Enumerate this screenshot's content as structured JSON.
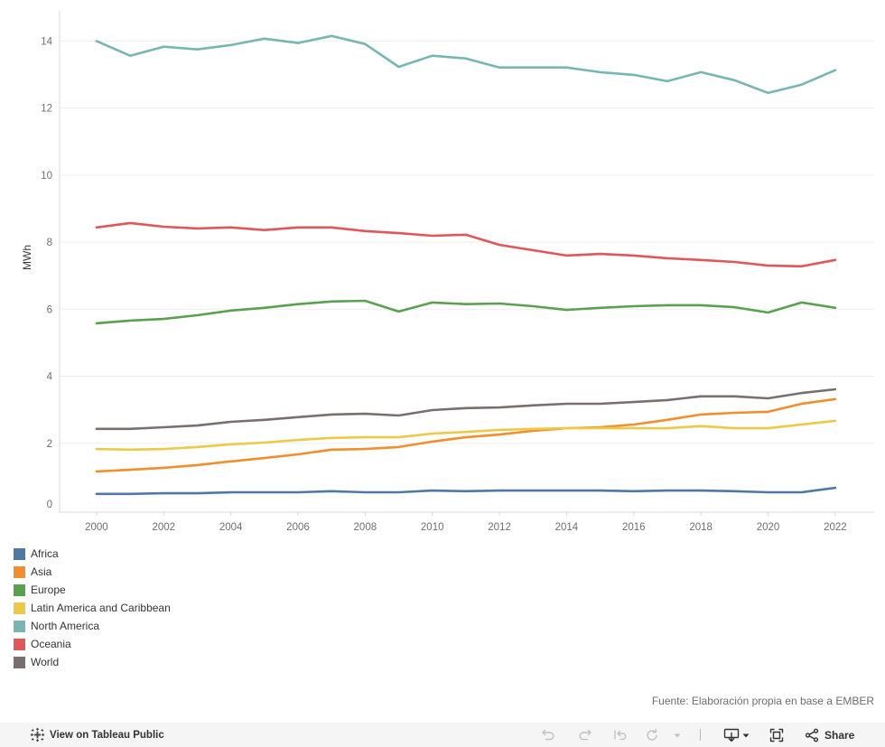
{
  "chart_data": {
    "type": "line",
    "ylabel": "MWh",
    "legend": "bottom-left",
    "grid": true,
    "xlim": [
      1998.9,
      2023.16
    ],
    "ylim": [
      0,
      14.9
    ],
    "x_ticks": [
      2000,
      2002,
      2004,
      2006,
      2008,
      2010,
      2012,
      2014,
      2016,
      2018,
      2020,
      2022
    ],
    "y_ticks": [
      0,
      2,
      4,
      6,
      8,
      10,
      12,
      14
    ],
    "x": [
      2000,
      2001,
      2002,
      2003,
      2004,
      2005,
      2006,
      2007,
      2008,
      2009,
      2010,
      2011,
      2012,
      2013,
      2014,
      2015,
      2016,
      2017,
      2018,
      2019,
      2020,
      2021,
      2022
    ],
    "series": [
      {
        "name": "Africa",
        "color": "#4e79a7",
        "values": [
          0.49,
          0.49,
          0.51,
          0.51,
          0.54,
          0.54,
          0.54,
          0.57,
          0.54,
          0.54,
          0.59,
          0.57,
          0.59,
          0.59,
          0.59,
          0.59,
          0.57,
          0.59,
          0.59,
          0.57,
          0.54,
          0.54,
          0.67
        ]
      },
      {
        "name": "Asia",
        "color": "#f28e2b",
        "values": [
          1.16,
          1.21,
          1.27,
          1.35,
          1.46,
          1.56,
          1.67,
          1.81,
          1.83,
          1.89,
          2.05,
          2.18,
          2.26,
          2.37,
          2.45,
          2.48,
          2.56,
          2.7,
          2.86,
          2.91,
          2.94,
          3.18,
          3.32
        ]
      },
      {
        "name": "Europe",
        "color": "#59a14f",
        "values": [
          5.58,
          5.66,
          5.71,
          5.82,
          5.96,
          6.04,
          6.15,
          6.23,
          6.25,
          5.93,
          6.2,
          6.15,
          6.17,
          6.09,
          5.98,
          6.04,
          6.09,
          6.12,
          6.12,
          6.06,
          5.9,
          6.2,
          6.04
        ]
      },
      {
        "name": "Latin America and Caribbean",
        "color": "#edc948",
        "values": [
          1.83,
          1.81,
          1.83,
          1.89,
          1.97,
          2.02,
          2.1,
          2.16,
          2.18,
          2.18,
          2.29,
          2.34,
          2.4,
          2.43,
          2.45,
          2.45,
          2.45,
          2.45,
          2.51,
          2.45,
          2.45,
          2.56,
          2.67
        ]
      },
      {
        "name": "North America",
        "color": "#76b7b2",
        "values": [
          14.0,
          13.56,
          13.83,
          13.75,
          13.88,
          14.07,
          13.94,
          14.15,
          13.91,
          13.23,
          13.56,
          13.48,
          13.21,
          13.21,
          13.21,
          13.07,
          12.99,
          12.8,
          13.07,
          12.83,
          12.45,
          12.7,
          13.13
        ]
      },
      {
        "name": "Oceania",
        "color": "#e15759",
        "values": [
          8.44,
          8.57,
          8.46,
          8.41,
          8.44,
          8.36,
          8.44,
          8.44,
          8.33,
          8.27,
          8.19,
          8.22,
          7.92,
          7.76,
          7.6,
          7.65,
          7.6,
          7.52,
          7.47,
          7.41,
          7.3,
          7.28,
          7.47
        ]
      },
      {
        "name": "World",
        "color": "#79706e",
        "values": [
          2.43,
          2.43,
          2.48,
          2.53,
          2.64,
          2.7,
          2.78,
          2.86,
          2.88,
          2.83,
          2.99,
          3.05,
          3.07,
          3.13,
          3.18,
          3.18,
          3.23,
          3.29,
          3.4,
          3.4,
          3.34,
          3.5,
          3.61
        ]
      }
    ]
  },
  "source": "Fuente: Elaboración propia en base a EMBER",
  "toolbar": {
    "view_label": "View on Tableau Public",
    "share_label": "Share",
    "icons": [
      "tableau-logo-icon",
      "undo-icon",
      "redo-icon",
      "revert-icon",
      "refresh-icon",
      "dropdown-caret-icon",
      "download-icon",
      "fullscreen-icon",
      "share-icon"
    ]
  }
}
